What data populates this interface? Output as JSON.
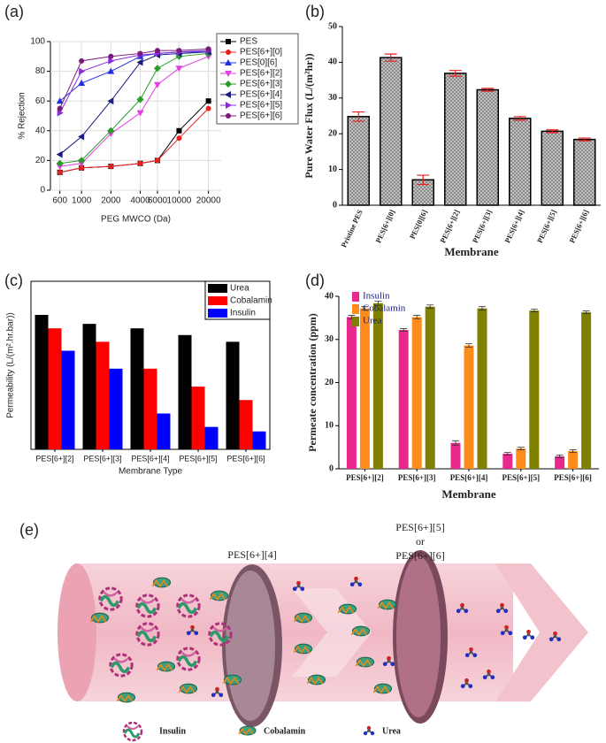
{
  "chart_data": [
    {
      "type": "line",
      "label": "(a)",
      "x_label": "PEG MWCO (Da)",
      "y_label": "% Rejection",
      "x": [
        600,
        1000,
        2000,
        4000,
        6000,
        10000,
        20000
      ],
      "xscale": "log",
      "xlim": [
        480,
        27000
      ],
      "xticks": [
        600,
        1000,
        2000,
        4000,
        6000,
        10000,
        20000
      ],
      "ylim": [
        0,
        100
      ],
      "yticks": [
        0,
        20,
        40,
        60,
        80,
        100
      ],
      "legend": "upper right",
      "series": [
        {
          "name": "PES",
          "color": "#000000",
          "marker": "square",
          "values": [
            12,
            15,
            16,
            18,
            20,
            40,
            60
          ]
        },
        {
          "name": "PES[6+][0]",
          "color": "#e8201e",
          "marker": "circle",
          "values": [
            12,
            15,
            16,
            18,
            20,
            35,
            55
          ]
        },
        {
          "name": "PES[0][6]",
          "color": "#1f2fe0",
          "marker": "tri-up",
          "values": [
            60,
            72,
            80,
            90,
            92,
            93,
            93
          ]
        },
        {
          "name": "PES[6+][2]",
          "color": "#e040e0",
          "marker": "tri-down",
          "values": [
            16,
            18,
            38,
            52,
            71,
            82,
            90
          ]
        },
        {
          "name": "PES[6+][3]",
          "color": "#2a9a2a",
          "marker": "diamond",
          "values": [
            18,
            20,
            40,
            61,
            82,
            90,
            92
          ]
        },
        {
          "name": "PES[6+][4]",
          "color": "#1a1a80",
          "marker": "tri-left",
          "values": [
            24,
            36,
            60,
            86,
            91,
            92,
            93
          ]
        },
        {
          "name": "PES[6+][5]",
          "color": "#8a2be2",
          "marker": "tri-right",
          "values": [
            52,
            80,
            87,
            91,
            92,
            93,
            94
          ]
        },
        {
          "name": "PES[6+][6]",
          "color": "#7a1a7a",
          "marker": "circle",
          "values": [
            55,
            87,
            90,
            92,
            94,
            94,
            95
          ]
        }
      ]
    },
    {
      "type": "bar",
      "label": "(b)",
      "x_label": "Membrane",
      "y_label": "Pure Water Flux (L/(m²hr))",
      "categories": [
        "Pristine PES",
        "PES[6+][0]",
        "PES[0][6]",
        "PES[6+][2]",
        "PES[6+][3]",
        "PES[6+][4]",
        "PES[6+][5]",
        "PES[6+][6]"
      ],
      "values": [
        24.8,
        41.3,
        7.1,
        36.9,
        32.3,
        24.3,
        20.7,
        18.4
      ],
      "errors": [
        1.3,
        1.0,
        1.3,
        0.8,
        0.4,
        0.5,
        0.4,
        0.4
      ],
      "color": "#c8c8c8",
      "error_color": "#e8201e",
      "hatch": true,
      "ylim": [
        0,
        50
      ],
      "yticks": [
        0,
        10,
        20,
        30,
        40,
        50
      ]
    },
    {
      "type": "grouped_bar",
      "label": "(c)",
      "x_label": "Membrane Type",
      "y_label": "Permeability (L/(m².hr.bar))",
      "categories": [
        "PES[6+][2]",
        "PES[6+][3]",
        "PES[6+][4]",
        "PES[6+][5]",
        "PES[6+][6]"
      ],
      "ylim": [
        0,
        37.5
      ],
      "legend": "upper right",
      "series": [
        {
          "name": "Urea",
          "color": "#000000",
          "values": [
            30,
            28,
            27,
            25.5,
            24
          ]
        },
        {
          "name": "Cobalamin",
          "color": "#ff0000",
          "values": [
            27,
            24,
            18,
            14,
            11
          ]
        },
        {
          "name": "Insulin",
          "color": "#0000ff",
          "values": [
            22,
            18,
            8,
            5,
            4
          ]
        }
      ]
    },
    {
      "type": "grouped_bar",
      "label": "(d)",
      "x_label": "Membrane",
      "y_label": "Permeate concentration (ppm)",
      "categories": [
        "PES[6+][2]",
        "PES[6+][3]",
        "PES[6+][4]",
        "PES[6+][5]",
        "PES[6+][6]"
      ],
      "ylim": [
        0,
        40
      ],
      "yticks": [
        0,
        10,
        20,
        30,
        40
      ],
      "legend": "upper left",
      "series": [
        {
          "name": "Insulin",
          "color": "#e8288c",
          "values": [
            35.2,
            32.2,
            6.0,
            3.5,
            2.9
          ],
          "errors": [
            0.4,
            0.3,
            0.5,
            0.3,
            0.3
          ]
        },
        {
          "name": "Cobalamin",
          "color": "#ff8c1a",
          "values": [
            37.2,
            35.2,
            28.6,
            4.7,
            4.1
          ],
          "errors": [
            0.4,
            0.4,
            0.4,
            0.3,
            0.3
          ]
        },
        {
          "name": "Urea",
          "color": "#808000",
          "values": [
            38.4,
            37.6,
            37.2,
            36.7,
            36.3
          ],
          "errors": [
            0.5,
            0.4,
            0.4,
            0.3,
            0.3
          ]
        }
      ]
    }
  ],
  "diagram": {
    "label": "(e)",
    "membrane_1": "PES[6+][4]",
    "membrane_2": [
      "PES[6+][5]",
      "or",
      "PES[6+][6]"
    ],
    "legend": [
      "Insulin",
      "Cobalamin",
      "Urea"
    ]
  }
}
